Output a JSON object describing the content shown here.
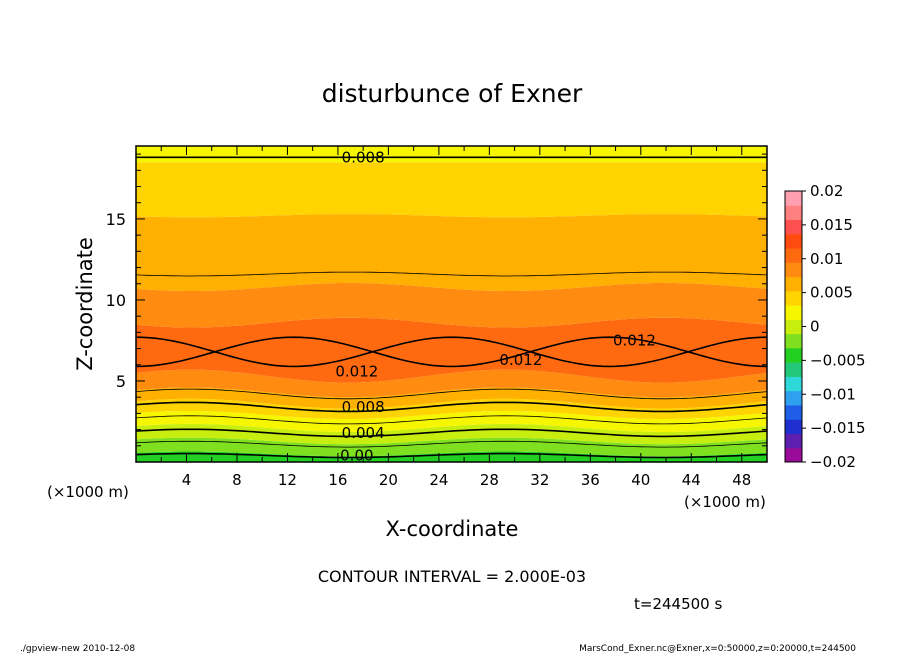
{
  "chart_data": {
    "type": "contour",
    "title": "disturbunce of Exner",
    "xlabel": "X-coordinate",
    "ylabel": "Z-coordinate",
    "x_unit_left": "(×1000 m)",
    "x_unit_right": "(×1000 m)",
    "xlim": [
      0,
      50
    ],
    "ylim": [
      0,
      19.5
    ],
    "x_ticks": [
      4,
      8,
      12,
      16,
      20,
      24,
      28,
      32,
      36,
      40,
      44,
      48
    ],
    "y_ticks": [
      5,
      10,
      15
    ],
    "contour_interval_text": "CONTOUR INTERVAL = 2.000E-03",
    "contour_labels": [
      {
        "text": "0.008",
        "x": 18,
        "z": 18.8
      },
      {
        "text": "0.012",
        "x": 17.5,
        "z": 5.6
      },
      {
        "text": "0.012",
        "x": 30.5,
        "z": 6.3
      },
      {
        "text": "0.012",
        "x": 39.5,
        "z": 7.5
      },
      {
        "text": "0.008",
        "x": 18,
        "z": 3.4
      },
      {
        "text": "0.004",
        "x": 18,
        "z": 1.8
      },
      {
        "text": "0.00",
        "x": 17.5,
        "z": 0.4
      }
    ],
    "colorbar": {
      "ticks": [
        "0.02",
        "0.015",
        "0.01",
        "0.005",
        "0",
        "−0.005",
        "−0.01",
        "−0.015",
        "−0.02"
      ],
      "colors": [
        "#9a0b9a",
        "#5c1fb0",
        "#1f2fd0",
        "#1f5fe8",
        "#2fa0f0",
        "#2fd8d8",
        "#22c878",
        "#22d022",
        "#7fe020",
        "#c8ee10",
        "#f6f600",
        "#ffd400",
        "#ffb000",
        "#ff8c10",
        "#ff6a10",
        "#ff4a10",
        "#ff5050",
        "#ff8080",
        "#ff9fb0"
      ]
    },
    "time_label": "t=244500 s"
  },
  "footer": {
    "left": "./gpview-new   2010-12-08",
    "right": "MarsCond_Exner.nc@Exner,x=0:50000,z=0:20000,t=244500"
  }
}
